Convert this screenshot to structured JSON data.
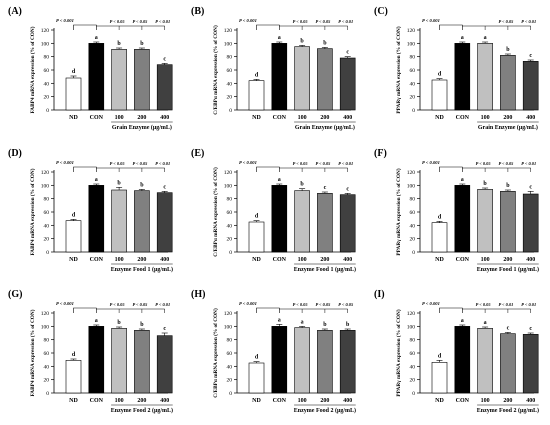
{
  "chart_data": [
    {
      "panel": "(A)",
      "type": "bar",
      "categories": [
        "ND",
        "CON",
        "100",
        "200",
        "400"
      ],
      "values": [
        48,
        100,
        91,
        91,
        68
      ],
      "errors": [
        3,
        2,
        2,
        2,
        2
      ],
      "letters": [
        "d",
        "a",
        "b",
        "b",
        "c"
      ],
      "pvals": [
        "P < 0.001",
        "P < 0.05",
        "P < 0.05",
        "P < 0.01"
      ],
      "ylabel": "FABP4 mRNA expression (% of CON)",
      "xlabel": "Grain Enzyme (μg/mL)",
      "ylim": [
        0,
        120
      ],
      "yticks": [
        0,
        20,
        40,
        60,
        80,
        100,
        120
      ]
    },
    {
      "panel": "(B)",
      "type": "bar",
      "categories": [
        "ND",
        "CON",
        "100",
        "200",
        "400"
      ],
      "values": [
        44,
        100,
        95,
        92,
        78
      ],
      "errors": [
        2,
        2,
        2,
        2,
        2
      ],
      "letters": [
        "d",
        "a",
        "b",
        "b",
        "c"
      ],
      "pvals": [
        "P < 0.001",
        "P < 0.05",
        "P < 0.05",
        "P < 0.01"
      ],
      "ylabel": "C/EBPα mRNA expression (% of CON)",
      "xlabel": "Grain Enzyme (μg/mL)",
      "ylim": [
        0,
        120
      ],
      "yticks": [
        0,
        20,
        40,
        60,
        80,
        100,
        120
      ]
    },
    {
      "panel": "(C)",
      "type": "bar",
      "categories": [
        "ND",
        "CON",
        "100",
        "200",
        "400"
      ],
      "values": [
        45,
        100,
        100,
        82,
        73
      ],
      "errors": [
        2,
        2,
        2,
        2,
        2
      ],
      "letters": [
        "d",
        "a",
        "a",
        "b",
        "c"
      ],
      "pvals": [
        "P < 0.001",
        "",
        "P < 0.05",
        "P < 0.01"
      ],
      "ylabel": "PPARγ mRNA expression (% of CON)",
      "xlabel": "Grain Enzyme (μg/mL)",
      "ylim": [
        0,
        120
      ],
      "yticks": [
        0,
        20,
        40,
        60,
        80,
        100,
        120
      ]
    },
    {
      "panel": "(D)",
      "type": "bar",
      "categories": [
        "ND",
        "CON",
        "100",
        "200",
        "400"
      ],
      "values": [
        47,
        100,
        93,
        92,
        89
      ],
      "errors": [
        2,
        2,
        4,
        2,
        2
      ],
      "letters": [
        "d",
        "a",
        "b",
        "b",
        "c"
      ],
      "pvals": [
        "P < 0.001",
        "P < 0.05",
        "P < 0.05",
        "P < 0.01"
      ],
      "ylabel": "FABP4 mRNA expression (% of CON)",
      "xlabel": "Enzyme Food 1 (μg/mL)",
      "ylim": [
        0,
        120
      ],
      "yticks": [
        0,
        20,
        40,
        60,
        80,
        100,
        120
      ]
    },
    {
      "panel": "(E)",
      "type": "bar",
      "categories": [
        "ND",
        "CON",
        "100",
        "200",
        "400"
      ],
      "values": [
        45,
        100,
        92,
        88,
        86
      ],
      "errors": [
        2,
        2,
        3,
        2,
        2
      ],
      "letters": [
        "d",
        "a",
        "b",
        "c",
        "c"
      ],
      "pvals": [
        "P < 0.001",
        "P < 0.05",
        "P < 0.05",
        "P < 0.01"
      ],
      "ylabel": "C/EBPα mRNA expression (% of CON)",
      "xlabel": "Enzyme Food 1 (μg/mL)",
      "ylim": [
        0,
        120
      ],
      "yticks": [
        0,
        20,
        40,
        60,
        80,
        100,
        120
      ]
    },
    {
      "panel": "(F)",
      "type": "bar",
      "categories": [
        "ND",
        "CON",
        "100",
        "200",
        "400"
      ],
      "values": [
        44,
        100,
        94,
        91,
        87
      ],
      "errors": [
        2,
        2,
        2,
        2,
        4
      ],
      "letters": [
        "d",
        "a",
        "b",
        "b",
        "c"
      ],
      "pvals": [
        "P < 0.001",
        "P < 0.05",
        "P < 0.05",
        "P < 0.01"
      ],
      "ylabel": "PPARγ mRNA expression (% of CON)",
      "xlabel": "Enzyme Food 1 (μg/mL)",
      "ylim": [
        0,
        120
      ],
      "yticks": [
        0,
        20,
        40,
        60,
        80,
        100,
        120
      ]
    },
    {
      "panel": "(G)",
      "type": "bar",
      "categories": [
        "ND",
        "CON",
        "100",
        "200",
        "400"
      ],
      "values": [
        49,
        100,
        97,
        94,
        86
      ],
      "errors": [
        2,
        2,
        2,
        2,
        4
      ],
      "letters": [
        "d",
        "a",
        "b",
        "b",
        "c"
      ],
      "pvals": [
        "P < 0.001",
        "P < 0.05",
        "P < 0.05",
        "P < 0.01"
      ],
      "ylabel": "FABP4 mRNA expression (% of CON)",
      "xlabel": "Enzyme Food 2 (μg/mL)",
      "ylim": [
        0,
        120
      ],
      "yticks": [
        0,
        20,
        40,
        60,
        80,
        100,
        120
      ]
    },
    {
      "panel": "(H)",
      "type": "bar",
      "categories": [
        "ND",
        "CON",
        "100",
        "200",
        "400"
      ],
      "values": [
        45,
        100,
        98,
        94,
        94
      ],
      "errors": [
        2,
        3,
        2,
        2,
        2
      ],
      "letters": [
        "d",
        "a",
        "a",
        "b",
        "b"
      ],
      "pvals": [
        "P < 0.001",
        "P < 0.05",
        "P < 0.05",
        "P < 0.05"
      ],
      "ylabel": "C/EBPα mRNA expression (% of CON)",
      "xlabel": "Enzyme Food 2 (μg/mL)",
      "ylim": [
        0,
        120
      ],
      "yticks": [
        0,
        20,
        40,
        60,
        80,
        100,
        120
      ]
    },
    {
      "panel": "(I)",
      "type": "bar",
      "categories": [
        "ND",
        "CON",
        "100",
        "200",
        "400"
      ],
      "values": [
        46,
        100,
        97,
        89,
        88
      ],
      "errors": [
        3,
        2,
        2,
        2,
        2
      ],
      "letters": [
        "d",
        "a",
        "a",
        "c",
        "c"
      ],
      "pvals": [
        "P < 0.001",
        "P < 0.05",
        "P < 0.01",
        "P < 0.01"
      ],
      "ylabel": "PPARγ mRNA expression (% of CON)",
      "xlabel": "Enzyme Food 2 (μg/mL)",
      "ylim": [
        0,
        120
      ],
      "yticks": [
        0,
        20,
        40,
        60,
        80,
        100,
        120
      ]
    }
  ],
  "bar_colors": [
    "#ffffff",
    "#000000",
    "#c0c0c0",
    "#808080",
    "#404040"
  ]
}
